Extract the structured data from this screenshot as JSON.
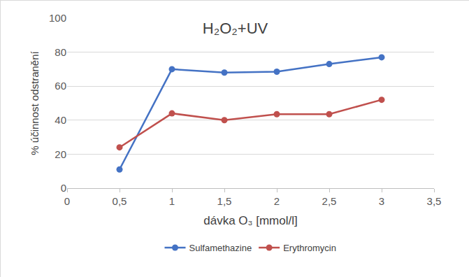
{
  "chart_data": {
    "type": "line",
    "title": "H₂O₂+UV",
    "x_label": "dávka O₃ [mmol/l]",
    "y_label": "% účinnost odstranění",
    "x": [
      0.5,
      1,
      1.5,
      2,
      2.5,
      3
    ],
    "series": [
      {
        "name": "Sulfamethazine",
        "color": "#4472c4",
        "marker": "circle",
        "values": [
          11,
          70,
          68,
          68.5,
          73,
          77
        ]
      },
      {
        "name": "Erythromycin",
        "color": "#c0504d",
        "marker": "circle",
        "values": [
          24,
          44,
          40,
          43.5,
          43.5,
          52
        ]
      }
    ],
    "xlim": [
      0,
      3.5
    ],
    "xticks": [
      0,
      {
        "value": 0.5,
        "label": "0,5"
      },
      1,
      {
        "value": 1.5,
        "label": "1,5"
      },
      2,
      {
        "value": 2.5,
        "label": "2,5"
      },
      3,
      {
        "value": 3.5,
        "label": "3,5"
      }
    ],
    "ylim": [
      0,
      100
    ],
    "yticks": [
      0,
      20,
      40,
      60,
      80,
      100
    ],
    "grid": true,
    "legend": "bottom"
  }
}
